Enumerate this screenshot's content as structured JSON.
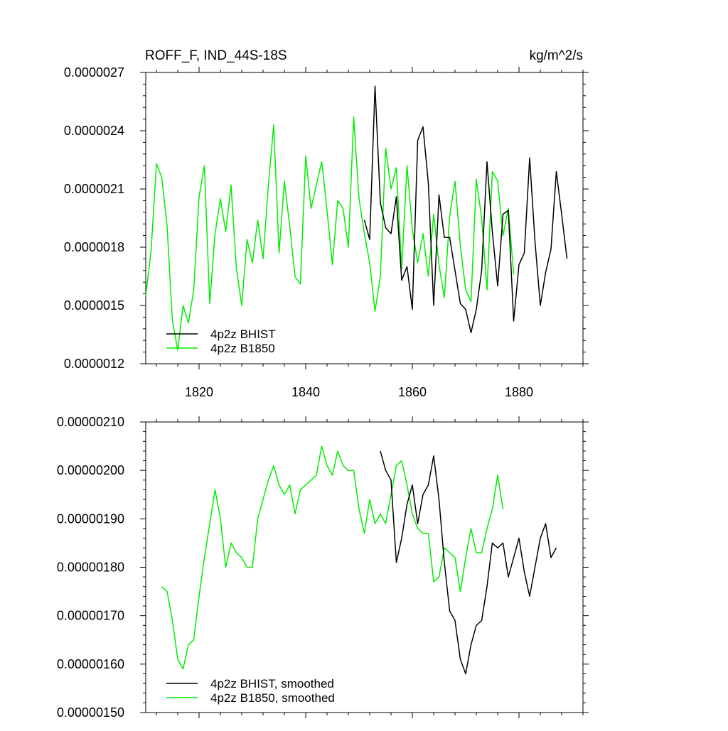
{
  "header": {
    "title": "ROFF_F, IND_44S-18S",
    "units": "kg/m^2/s"
  },
  "colors": {
    "bhist": "#000000",
    "b1850": "#00ee00",
    "axis": "#000000"
  },
  "chart_data": [
    {
      "type": "line",
      "title": "ROFF_F, IND_44S-18S",
      "ylabel": "kg/m^2/s",
      "xlim": [
        1810,
        1892
      ],
      "ylim": [
        1.2e-06,
        2.7e-06
      ],
      "xticks": [
        1820,
        1840,
        1860,
        1880
      ],
      "xtick_labels": [
        "1820",
        "1840",
        "1860",
        "1880"
      ],
      "yticks": [
        1.2e-06,
        1.5e-06,
        1.8e-06,
        2.1e-06,
        2.4e-06,
        2.7e-06
      ],
      "ytick_labels": [
        "0.0000012",
        "0.0000015",
        "0.0000018",
        "0.0000021",
        "0.0000024",
        "0.0000027"
      ],
      "legend_position": "bottom-left",
      "series": [
        {
          "name": "4p2z BHIST",
          "color": "#000000",
          "x": [
            1851,
            1852,
            1853,
            1854,
            1855,
            1856,
            1857,
            1858,
            1859,
            1860,
            1861,
            1862,
            1863,
            1864,
            1865,
            1866,
            1867,
            1868,
            1869,
            1870,
            1871,
            1872,
            1873,
            1874,
            1875,
            1876,
            1877,
            1878,
            1879,
            1880,
            1881,
            1882,
            1883,
            1884,
            1885,
            1886,
            1887,
            1888,
            1889
          ],
          "y": [
            1.94e-06,
            1.84e-06,
            2.63e-06,
            2.03e-06,
            1.9e-06,
            1.87e-06,
            2.06e-06,
            1.63e-06,
            1.7e-06,
            1.48e-06,
            2.35e-06,
            2.42e-06,
            2.13e-06,
            1.5e-06,
            2.07e-06,
            1.85e-06,
            1.85e-06,
            1.68e-06,
            1.51e-06,
            1.48e-06,
            1.36e-06,
            1.48e-06,
            1.68e-06,
            2.24e-06,
            1.88e-06,
            1.6e-06,
            1.97e-06,
            1.99e-06,
            1.42e-06,
            1.71e-06,
            1.77e-06,
            2.26e-06,
            1.83e-06,
            1.5e-06,
            1.67e-06,
            1.79e-06,
            2.19e-06,
            1.97e-06,
            1.74e-06
          ]
        },
        {
          "name": "4p2z B1850",
          "color": "#00ee00",
          "x": [
            1810,
            1811,
            1812,
            1813,
            1814,
            1815,
            1816,
            1817,
            1818,
            1819,
            1820,
            1821,
            1822,
            1823,
            1824,
            1825,
            1826,
            1827,
            1828,
            1829,
            1830,
            1831,
            1832,
            1833,
            1834,
            1835,
            1836,
            1837,
            1838,
            1839,
            1840,
            1841,
            1842,
            1843,
            1844,
            1845,
            1846,
            1847,
            1848,
            1849,
            1850,
            1851,
            1852,
            1853,
            1854,
            1855,
            1856,
            1857,
            1858,
            1859,
            1860,
            1861,
            1862,
            1863,
            1864,
            1865,
            1866,
            1867,
            1868,
            1869,
            1870,
            1871,
            1872,
            1873,
            1874,
            1875,
            1876,
            1877,
            1878,
            1879
          ],
          "y": [
            1.55e-06,
            1.78e-06,
            2.23e-06,
            2.16e-06,
            1.91e-06,
            1.42e-06,
            1.27e-06,
            1.5e-06,
            1.41e-06,
            1.58e-06,
            2.06e-06,
            2.22e-06,
            1.51e-06,
            1.87e-06,
            2.05e-06,
            1.88e-06,
            2.12e-06,
            1.69e-06,
            1.5e-06,
            1.84e-06,
            1.72e-06,
            1.94e-06,
            1.74e-06,
            2.12e-06,
            2.43e-06,
            1.77e-06,
            2.14e-06,
            1.91e-06,
            1.65e-06,
            1.61e-06,
            2.27e-06,
            2e-06,
            2.12e-06,
            2.24e-06,
            1.99e-06,
            1.71e-06,
            2.04e-06,
            2e-06,
            1.8e-06,
            2.47e-06,
            2.05e-06,
            1.87e-06,
            1.72e-06,
            1.47e-06,
            1.65e-06,
            2.31e-06,
            2.1e-06,
            2.21e-06,
            1.69e-06,
            2.22e-06,
            1.89e-06,
            1.72e-06,
            1.87e-06,
            1.65e-06,
            1.97e-06,
            1.71e-06,
            1.54e-06,
            1.96e-06,
            2.14e-06,
            1.81e-06,
            1.58e-06,
            1.52e-06,
            2.15e-06,
            1.95e-06,
            1.58e-06,
            2.19e-06,
            2.14e-06,
            1.86e-06,
            2e-06,
            1.66e-06
          ]
        }
      ]
    },
    {
      "type": "line",
      "xlim": [
        1810,
        1892
      ],
      "ylim": [
        1.5e-06,
        2.1e-06
      ],
      "xticks": [
        1820,
        1840,
        1860,
        1880
      ],
      "yticks": [
        1.5e-06,
        1.6e-06,
        1.7e-06,
        1.8e-06,
        1.9e-06,
        2e-06,
        2.1e-06
      ],
      "ytick_labels": [
        "0.00000150",
        "0.00000160",
        "0.00000170",
        "0.00000180",
        "0.00000190",
        "0.00000200",
        "0.00000210"
      ],
      "legend_position": "bottom-left",
      "series": [
        {
          "name": "4p2z BHIST, smoothed",
          "color": "#000000",
          "x": [
            1854,
            1855,
            1856,
            1857,
            1858,
            1859,
            1860,
            1861,
            1862,
            1863,
            1864,
            1865,
            1866,
            1867,
            1868,
            1869,
            1870,
            1871,
            1872,
            1873,
            1874,
            1875,
            1876,
            1877,
            1878,
            1879,
            1880,
            1881,
            1882,
            1883,
            1884,
            1885,
            1886,
            1887
          ],
          "y": [
            2.04e-06,
            2e-06,
            1.98e-06,
            1.81e-06,
            1.86e-06,
            1.93e-06,
            1.97e-06,
            1.89e-06,
            1.95e-06,
            1.97e-06,
            2.03e-06,
            1.94e-06,
            1.81e-06,
            1.71e-06,
            1.69e-06,
            1.61e-06,
            1.58e-06,
            1.64e-06,
            1.68e-06,
            1.69e-06,
            1.76e-06,
            1.85e-06,
            1.84e-06,
            1.85e-06,
            1.78e-06,
            1.82e-06,
            1.86e-06,
            1.79e-06,
            1.74e-06,
            1.8e-06,
            1.86e-06,
            1.89e-06,
            1.82e-06,
            1.84e-06
          ]
        },
        {
          "name": "4p2z B1850, smoothed",
          "color": "#00ee00",
          "x": [
            1813,
            1814,
            1815,
            1816,
            1817,
            1818,
            1819,
            1820,
            1821,
            1822,
            1823,
            1824,
            1825,
            1826,
            1827,
            1828,
            1829,
            1830,
            1831,
            1832,
            1833,
            1834,
            1835,
            1836,
            1837,
            1838,
            1839,
            1840,
            1841,
            1842,
            1843,
            1844,
            1845,
            1846,
            1847,
            1848,
            1849,
            1850,
            1851,
            1852,
            1853,
            1854,
            1855,
            1856,
            1857,
            1858,
            1859,
            1860,
            1861,
            1862,
            1863,
            1864,
            1865,
            1866,
            1867,
            1868,
            1869,
            1870,
            1871,
            1872,
            1873,
            1874,
            1875,
            1876,
            1877
          ],
          "y": [
            1.76e-06,
            1.75e-06,
            1.69e-06,
            1.61e-06,
            1.59e-06,
            1.64e-06,
            1.65e-06,
            1.74e-06,
            1.82e-06,
            1.89e-06,
            1.96e-06,
            1.9e-06,
            1.8e-06,
            1.85e-06,
            1.83e-06,
            1.82e-06,
            1.8e-06,
            1.8e-06,
            1.9e-06,
            1.94e-06,
            1.98e-06,
            2.01e-06,
            1.97e-06,
            1.95e-06,
            1.97e-06,
            1.91e-06,
            1.96e-06,
            1.97e-06,
            1.98e-06,
            1.99e-06,
            2.05e-06,
            2.01e-06,
            1.99e-06,
            2.04e-06,
            2.01e-06,
            2e-06,
            2e-06,
            1.92e-06,
            1.87e-06,
            1.94e-06,
            1.89e-06,
            1.91e-06,
            1.89e-06,
            1.95e-06,
            2.01e-06,
            2.02e-06,
            1.97e-06,
            1.91e-06,
            1.88e-06,
            1.87e-06,
            1.87e-06,
            1.77e-06,
            1.78e-06,
            1.84e-06,
            1.83e-06,
            1.82e-06,
            1.75e-06,
            1.82e-06,
            1.88e-06,
            1.83e-06,
            1.83e-06,
            1.88e-06,
            1.92e-06,
            1.99e-06,
            1.92e-06
          ]
        }
      ]
    }
  ]
}
